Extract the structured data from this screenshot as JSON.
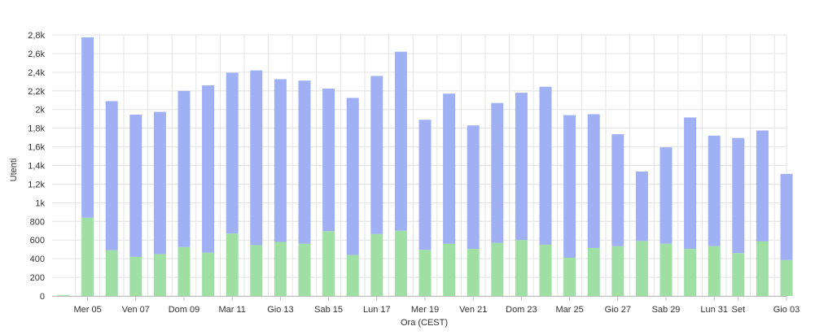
{
  "chart_data": {
    "type": "bar",
    "stacked": true,
    "xlabel": "Ora (CEST)",
    "ylabel": "Utenti",
    "ylim": [
      0,
      2800
    ],
    "y_ticks": [
      {
        "value": 0,
        "label": "0"
      },
      {
        "value": 200,
        "label": "200"
      },
      {
        "value": 400,
        "label": "400"
      },
      {
        "value": 600,
        "label": "600"
      },
      {
        "value": 800,
        "label": "800"
      },
      {
        "value": 1000,
        "label": "1k"
      },
      {
        "value": 1200,
        "label": "1,2k"
      },
      {
        "value": 1400,
        "label": "1,4k"
      },
      {
        "value": 1600,
        "label": "1,6k"
      },
      {
        "value": 1800,
        "label": "1,8k"
      },
      {
        "value": 2000,
        "label": "2k"
      },
      {
        "value": 2200,
        "label": "2,2k"
      },
      {
        "value": 2400,
        "label": "2,4k"
      },
      {
        "value": 2600,
        "label": "2,6k"
      },
      {
        "value": 2800,
        "label": "2,8k"
      }
    ],
    "x_tick_labels": [
      {
        "index": 1,
        "label": "Mer 05"
      },
      {
        "index": 3,
        "label": "Ven 07"
      },
      {
        "index": 5,
        "label": "Dom 09"
      },
      {
        "index": 7,
        "label": "Mar 11"
      },
      {
        "index": 9,
        "label": "Gio 13"
      },
      {
        "index": 11,
        "label": "Sab 15"
      },
      {
        "index": 13,
        "label": "Lun 17"
      },
      {
        "index": 15,
        "label": "Mer 19"
      },
      {
        "index": 17,
        "label": "Ven 21"
      },
      {
        "index": 19,
        "label": "Dom 23"
      },
      {
        "index": 21,
        "label": "Mar 25"
      },
      {
        "index": 23,
        "label": "Gio 27"
      },
      {
        "index": 25,
        "label": "Sab 29"
      },
      {
        "index": 27,
        "label": "Lun 31"
      },
      {
        "index": 28,
        "label": "Set"
      },
      {
        "index": 30,
        "label": "Gio 03"
      }
    ],
    "grid": true,
    "legend": "none",
    "series": [
      {
        "color": "#a0dfa3",
        "values": [
          10,
          840,
          490,
          420,
          450,
          525,
          465,
          670,
          545,
          580,
          560,
          695,
          440,
          665,
          700,
          495,
          560,
          505,
          570,
          600,
          550,
          410,
          515,
          535,
          590,
          560,
          505,
          535,
          460,
          585,
          385
        ]
      },
      {
        "color": "#9fb1f4",
        "values": [
          0,
          1935,
          1600,
          1525,
          1525,
          1675,
          1795,
          1725,
          1875,
          1745,
          1750,
          1530,
          1685,
          1695,
          1920,
          1395,
          1610,
          1325,
          1500,
          1580,
          1695,
          1530,
          1435,
          1200,
          745,
          1035,
          1410,
          1185,
          1235,
          1190,
          925
        ]
      }
    ]
  }
}
